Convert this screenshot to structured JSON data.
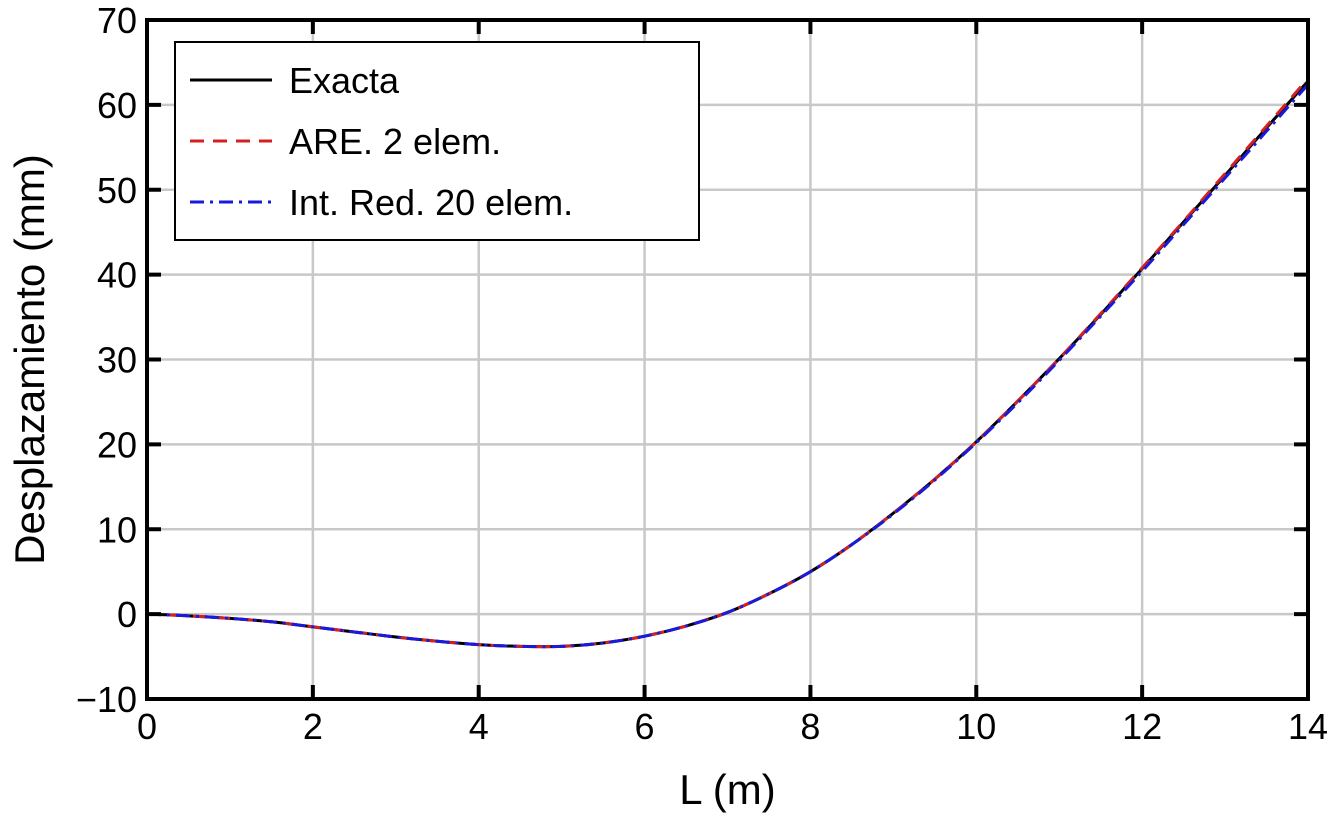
{
  "chart_data": {
    "type": "line",
    "xlabel": "L (m)",
    "ylabel": "Desplazamiento (mm)",
    "xlim": [
      0,
      14
    ],
    "ylim": [
      -10,
      70
    ],
    "xticks": [
      0,
      2,
      4,
      6,
      8,
      10,
      12,
      14
    ],
    "yticks": [
      -10,
      0,
      10,
      20,
      30,
      40,
      50,
      60,
      70
    ],
    "xtick_labels": [
      "0",
      "2",
      "4",
      "6",
      "8",
      "10",
      "12",
      "14"
    ],
    "ytick_labels": [
      "−10",
      "0",
      "10",
      "20",
      "30",
      "40",
      "50",
      "60",
      "70"
    ],
    "grid": true,
    "legend_position": "top-left",
    "x": [
      0,
      0.5,
      1,
      1.5,
      2,
      2.5,
      3,
      3.5,
      4,
      4.5,
      5,
      5.5,
      6,
      6.5,
      7,
      7.5,
      8,
      8.5,
      9,
      9.5,
      10,
      10.5,
      11,
      11.5,
      12,
      12.5,
      13,
      13.5,
      14
    ],
    "series": [
      {
        "name": "Exacta",
        "color": "#000000",
        "style": "solid",
        "values": [
          0,
          -0.2,
          -0.5,
          -0.9,
          -1.5,
          -2.1,
          -2.7,
          -3.2,
          -3.6,
          -3.8,
          -3.8,
          -3.4,
          -2.6,
          -1.4,
          0.2,
          2.4,
          5.0,
          8.2,
          11.9,
          15.9,
          20.3,
          25.1,
          30.1,
          35.3,
          40.7,
          46.2,
          51.7,
          57.3,
          62.8
        ]
      },
      {
        "name": "ARE. 2 elem.",
        "color": "#d42020",
        "style": "dashed",
        "values": [
          0,
          -0.2,
          -0.5,
          -0.9,
          -1.5,
          -2.1,
          -2.7,
          -3.2,
          -3.6,
          -3.8,
          -3.8,
          -3.4,
          -2.6,
          -1.4,
          0.2,
          2.4,
          5.0,
          8.2,
          11.9,
          15.9,
          20.3,
          25.1,
          30.1,
          35.4,
          40.8,
          46.3,
          51.9,
          57.5,
          63.1
        ]
      },
      {
        "name": "Int. Red. 20 elem.",
        "color": "#1a1adc",
        "style": "dashdot",
        "values": [
          0,
          -0.2,
          -0.5,
          -0.9,
          -1.5,
          -2.1,
          -2.7,
          -3.2,
          -3.6,
          -3.8,
          -3.8,
          -3.4,
          -2.6,
          -1.4,
          0.2,
          2.4,
          5.0,
          8.2,
          11.8,
          15.8,
          20.2,
          24.9,
          29.9,
          35.1,
          40.4,
          45.9,
          51.4,
          56.9,
          62.4
        ]
      }
    ]
  }
}
